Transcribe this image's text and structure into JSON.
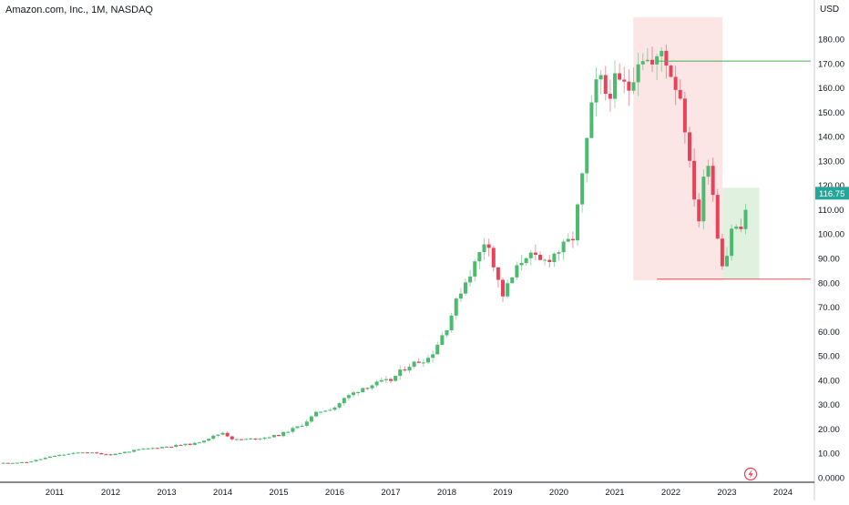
{
  "header": {
    "title": "Amazon.com, Inc., 1M, NASDAQ",
    "currency": "USD"
  },
  "chart_data": {
    "type": "candlestick",
    "symbol": "Amazon.com, Inc., 1M, NASDAQ",
    "currency": "USD",
    "ylim": [
      0,
      190
    ],
    "y_ticks": [
      "180.00",
      "170.00",
      "160.00",
      "150.00",
      "140.00",
      "130.00",
      "120.00",
      "110.00",
      "100.00",
      "90.00",
      "80.00",
      "70.00",
      "60.00",
      "50.00",
      "40.00",
      "30.00",
      "20.00",
      "10.00",
      "0.0000"
    ],
    "y_tick_values": [
      180,
      170,
      160,
      150,
      140,
      130,
      120,
      110,
      100,
      90,
      80,
      70,
      60,
      50,
      40,
      30,
      20,
      10,
      0
    ],
    "x_ticks": [
      "2011",
      "2012",
      "2013",
      "2014",
      "2015",
      "2016",
      "2017",
      "2018",
      "2019",
      "2020",
      "2021",
      "2022",
      "2023",
      "2024"
    ],
    "x_tick_years": [
      2011,
      2012,
      2013,
      2014,
      2015,
      2016,
      2017,
      2018,
      2019,
      2020,
      2021,
      2022,
      2023,
      2024
    ],
    "last_price": "116.75",
    "last_price_value": 116.75,
    "colors": {
      "up": "#26a69a",
      "down": "#ef5350",
      "up_bar": "#4cba6f",
      "down_bar": "#e8425a",
      "resistance_line": "#4caf50",
      "support_line": "#ef5350",
      "drawdown_zone": "#fbdcdc",
      "recovery_zone": "#d6ecd6",
      "price_label_bg": "#26a69a"
    },
    "horizontal_lines": [
      {
        "name": "resistance",
        "price": 171,
        "from": 2021.75,
        "color": "#4caf50"
      },
      {
        "name": "support",
        "price": 81.5,
        "from": 2021.75,
        "color": "#ef5350"
      }
    ],
    "zones": [
      {
        "name": "drawdown",
        "from": 2021.33,
        "to": 2022.92,
        "low": 81,
        "high": 189
      },
      {
        "name": "recovery",
        "from": 2022.92,
        "to": 2023.58,
        "low": 81.5,
        "high": 119
      }
    ],
    "waypoints": [
      [
        2010.0,
        6.0
      ],
      [
        2010.5,
        6.3
      ],
      [
        2011.0,
        9.0
      ],
      [
        2011.5,
        10.5
      ],
      [
        2012.0,
        9.5
      ],
      [
        2012.5,
        11.5
      ],
      [
        2013.0,
        12.8
      ],
      [
        2013.5,
        14.0
      ],
      [
        2014.0,
        18.5
      ],
      [
        2014.2,
        15.5
      ],
      [
        2014.6,
        16.0
      ],
      [
        2015.0,
        17.5
      ],
      [
        2015.4,
        21.5
      ],
      [
        2015.7,
        27.0
      ],
      [
        2016.0,
        29.0
      ],
      [
        2016.2,
        33.0
      ],
      [
        2016.5,
        37.0
      ],
      [
        2016.8,
        39.0
      ],
      [
        2017.0,
        40.0
      ],
      [
        2017.3,
        46.0
      ],
      [
        2017.7,
        49.5
      ],
      [
        2018.0,
        62.0
      ],
      [
        2018.25,
        77.0
      ],
      [
        2018.55,
        90.0
      ],
      [
        2018.72,
        100.0
      ],
      [
        2018.85,
        85.0
      ],
      [
        2019.0,
        75.0
      ],
      [
        2019.4,
        92.0
      ],
      [
        2019.7,
        88.0
      ],
      [
        2019.95,
        92.5
      ],
      [
        2020.1,
        95.0
      ],
      [
        2020.25,
        98.5
      ],
      [
        2020.4,
        120.0
      ],
      [
        2020.55,
        147.0
      ],
      [
        2020.7,
        165.0
      ],
      [
        2020.85,
        157.0
      ],
      [
        2021.0,
        162.0
      ],
      [
        2021.25,
        160.0
      ],
      [
        2021.45,
        175.0
      ],
      [
        2021.7,
        168.0
      ],
      [
        2021.85,
        176.0
      ],
      [
        2022.0,
        166.0
      ],
      [
        2022.2,
        155.0
      ],
      [
        2022.35,
        124.0
      ],
      [
        2022.5,
        106.0
      ],
      [
        2022.65,
        134.0
      ],
      [
        2022.75,
        117.0
      ],
      [
        2022.85,
        96.0
      ],
      [
        2022.95,
        85.0
      ],
      [
        2023.08,
        103.0
      ],
      [
        2023.25,
        102.0
      ],
      [
        2023.4,
        116.75
      ]
    ],
    "grid": false,
    "legend": "none"
  }
}
